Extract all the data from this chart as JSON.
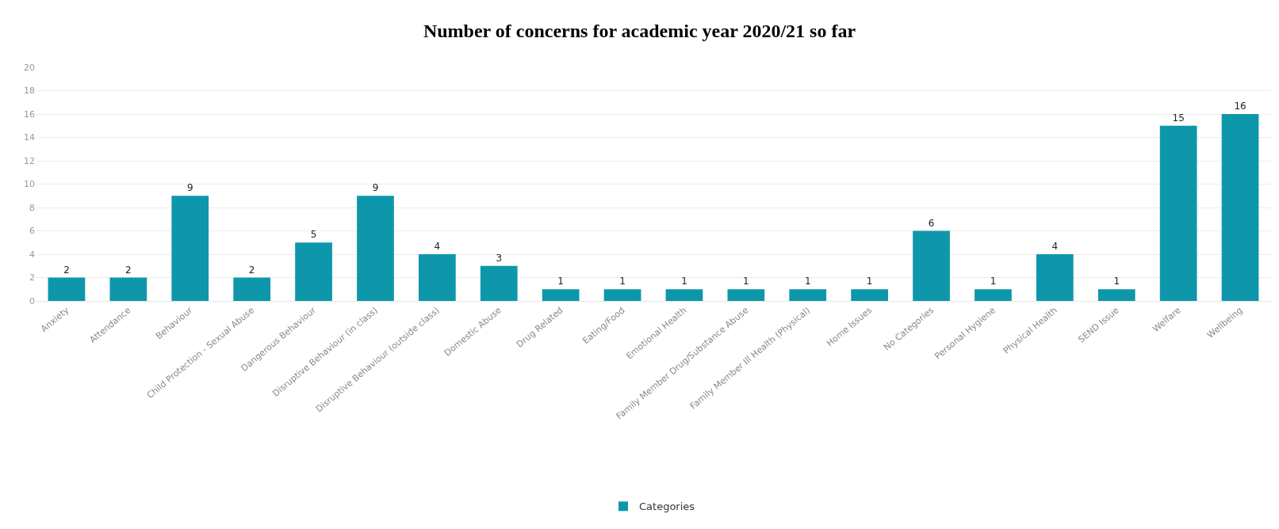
{
  "chart_data": {
    "type": "bar",
    "title": "Number of concerns for academic year 2020/21 so far",
    "categories": [
      "Anxiety",
      "Attendance",
      "Behaviour",
      "Child Protection - Sexual Abuse",
      "Dangerous Behaviour",
      "Disruptive Behaviour (in class)",
      "Disruptive Behaviour (outside class)",
      "Domestic Abuse",
      "Drug Related",
      "Eating/Food",
      "Emotional Health",
      "Family Member Drug/Substance Abuse",
      "Family Member Ill Health (Physical)",
      "Home Issues",
      "No Categories",
      "Personal Hygiene",
      "Physical Health",
      "SEND Issue",
      "Welfare",
      "Wellbeing"
    ],
    "series": [
      {
        "name": "Categories",
        "color": "#0e97ab",
        "values": [
          2,
          2,
          9,
          2,
          5,
          9,
          4,
          3,
          1,
          1,
          1,
          1,
          1,
          1,
          6,
          1,
          4,
          1,
          15,
          16
        ]
      }
    ],
    "ylim": [
      0,
      20
    ],
    "yticks": [
      0,
      2,
      4,
      6,
      8,
      10,
      12,
      14,
      16,
      18,
      20
    ],
    "grid": "y",
    "legend": "bottom",
    "data_labels": true
  }
}
